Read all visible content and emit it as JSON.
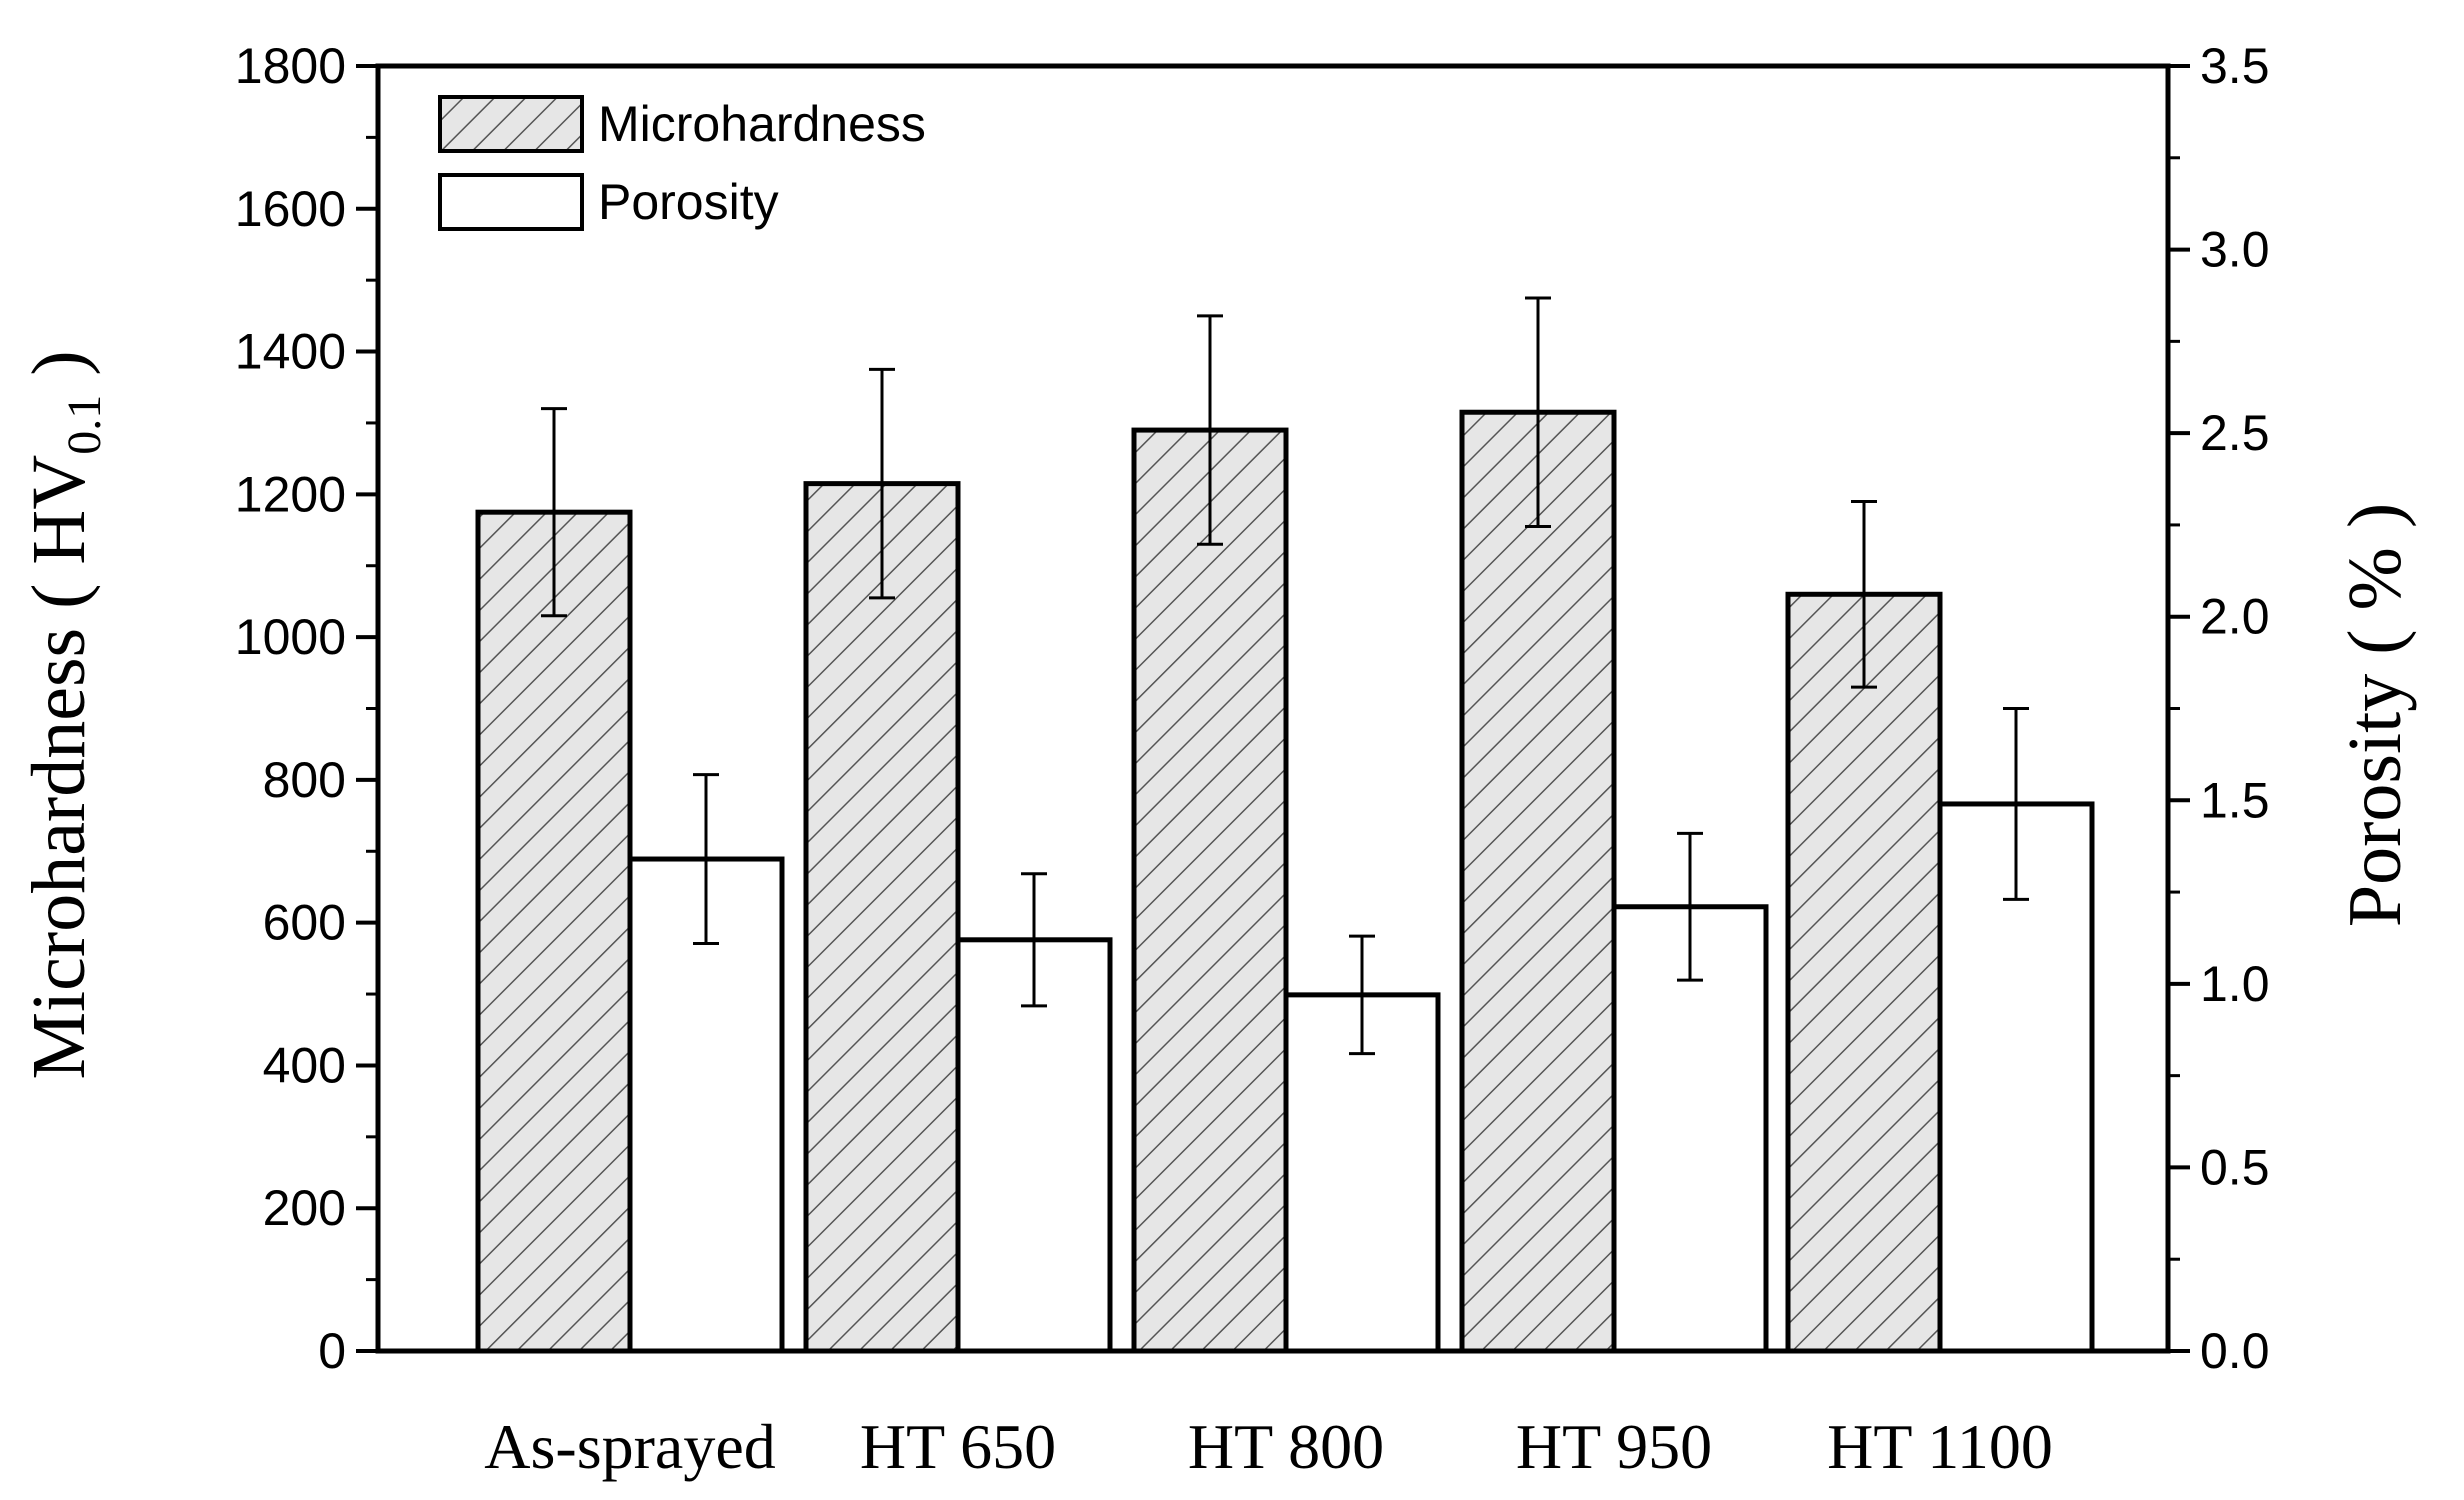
{
  "chart_data": {
    "type": "bar",
    "categories": [
      "As-sprayed",
      "HT 650",
      "HT 800",
      "HT 950",
      "HT 1100"
    ],
    "series": [
      {
        "name": "Microhardness",
        "axis": "left",
        "pattern": "hatched",
        "values": [
          1175,
          1215,
          1290,
          1315,
          1060
        ],
        "errors": [
          145,
          160,
          160,
          160,
          130
        ]
      },
      {
        "name": "Porosity",
        "axis": "right",
        "pattern": "open",
        "values": [
          1.34,
          1.12,
          0.97,
          1.21,
          1.49
        ],
        "errors": [
          0.23,
          0.18,
          0.16,
          0.2,
          0.26
        ]
      }
    ],
    "left_axis": {
      "label_main": "Microhardness ( HV",
      "label_sub": "0.1",
      "label_close": " )",
      "range": [
        0,
        1800
      ],
      "ticks": [
        "0",
        "200",
        "400",
        "600",
        "800",
        "1000",
        "1200",
        "1400",
        "1600",
        "1800"
      ]
    },
    "right_axis": {
      "label": "Porosity ( % )",
      "range": [
        0,
        3.5
      ],
      "ticks": [
        "0.0",
        "0.5",
        "1.0",
        "1.5",
        "2.0",
        "2.5",
        "3.0",
        "3.5"
      ]
    },
    "legend": {
      "placement": "top-left",
      "entries": [
        "Microhardness",
        "Porosity"
      ]
    },
    "colors": {
      "hatch_bg": "#e6e6e6",
      "hatch_line": "#555555",
      "stroke": "#000000",
      "open_fill": "#ffffff"
    }
  }
}
